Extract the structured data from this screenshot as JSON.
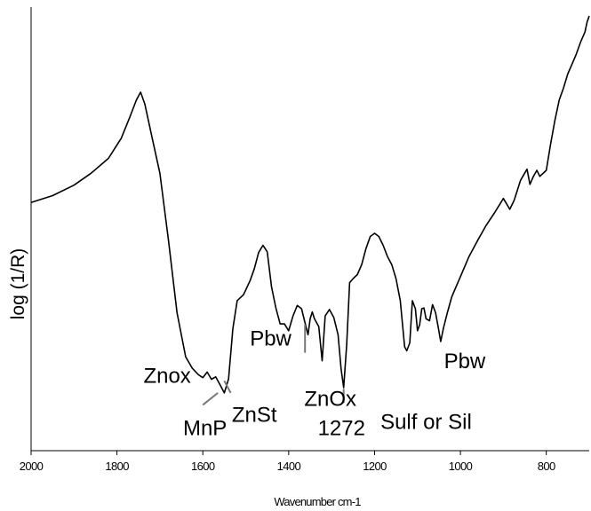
{
  "chart_data": {
    "type": "line",
    "title": "",
    "xlabel": "Wavenumber cm-1",
    "ylabel": "log (1/R)",
    "xlim": [
      2000,
      700
    ],
    "ylim": [
      0,
      1
    ],
    "x_reversed": true,
    "grid": false,
    "legend": "none",
    "xticks": [
      2000,
      1800,
      1600,
      1400,
      1200,
      1000,
      800
    ],
    "xtick_labels": [
      "2000",
      "1800",
      "1600",
      "1400",
      "1200",
      "1000",
      "800"
    ],
    "series": [
      {
        "color": "#000000",
        "x": [
          2000,
          1950,
          1900,
          1860,
          1820,
          1790,
          1770,
          1755,
          1745,
          1735,
          1720,
          1700,
          1680,
          1660,
          1640,
          1625,
          1610,
          1600,
          1590,
          1580,
          1570,
          1560,
          1550,
          1540,
          1530,
          1520,
          1505,
          1490,
          1480,
          1470,
          1460,
          1450,
          1440,
          1430,
          1420,
          1410,
          1400,
          1390,
          1380,
          1370,
          1362,
          1355,
          1350,
          1345,
          1340,
          1330,
          1322,
          1315,
          1305,
          1295,
          1285,
          1278,
          1272,
          1265,
          1258,
          1250,
          1240,
          1230,
          1220,
          1210,
          1200,
          1190,
          1180,
          1170,
          1160,
          1150,
          1140,
          1130,
          1125,
          1118,
          1112,
          1105,
          1100,
          1095,
          1090,
          1085,
          1080,
          1072,
          1065,
          1058,
          1052,
          1046,
          1040,
          1030,
          1020,
          1000,
          980,
          960,
          940,
          920,
          900,
          885,
          875,
          860,
          845,
          838,
          830,
          822,
          815,
          800,
          790,
          780,
          770,
          760,
          750,
          740,
          730,
          720,
          710,
          705,
          700
        ],
        "y": [
          0.535,
          0.552,
          0.578,
          0.608,
          0.645,
          0.695,
          0.748,
          0.79,
          0.81,
          0.78,
          0.705,
          0.608,
          0.44,
          0.26,
          0.15,
          0.122,
          0.105,
          0.098,
          0.112,
          0.094,
          0.1,
          0.08,
          0.06,
          0.095,
          0.22,
          0.29,
          0.305,
          0.34,
          0.37,
          0.41,
          0.428,
          0.412,
          0.325,
          0.272,
          0.232,
          0.232,
          0.215,
          0.252,
          0.278,
          0.27,
          0.235,
          0.205,
          0.245,
          0.262,
          0.245,
          0.225,
          0.14,
          0.252,
          0.268,
          0.248,
          0.205,
          0.12,
          0.073,
          0.18,
          0.335,
          0.345,
          0.355,
          0.38,
          0.42,
          0.45,
          0.458,
          0.45,
          0.428,
          0.4,
          0.38,
          0.345,
          0.29,
          0.175,
          0.165,
          0.185,
          0.29,
          0.27,
          0.215,
          0.23,
          0.27,
          0.272,
          0.245,
          0.24,
          0.28,
          0.26,
          0.225,
          0.188,
          0.22,
          0.262,
          0.3,
          0.35,
          0.4,
          0.44,
          0.478,
          0.51,
          0.545,
          0.518,
          0.54,
          0.59,
          0.618,
          0.58,
          0.6,
          0.615,
          0.6,
          0.615,
          0.68,
          0.74,
          0.79,
          0.82,
          0.855,
          0.88,
          0.905,
          0.935,
          0.96,
          0.985,
          1.0
        ]
      }
    ],
    "annotations": [
      {
        "text": "Znox",
        "x": 1683,
        "y": 0.085
      },
      {
        "text": "MnP",
        "x": 1595,
        "y": -0.045
      },
      {
        "text": "ZnSt",
        "x": 1480,
        "y": -0.012
      },
      {
        "text": "Pbw",
        "x": 1442,
        "y": 0.178
      },
      {
        "text": "ZnOx",
        "x": 1303,
        "y": 0.028
      },
      {
        "text": "1272",
        "x": 1277,
        "y": -0.045
      },
      {
        "text": "Sulf or Sil",
        "x": 1080,
        "y": -0.03
      },
      {
        "text": "Pbw",
        "x": 990,
        "y": 0.122
      }
    ],
    "pointer_lines": [
      {
        "from": [
          1600,
          0.03
        ],
        "to": [
          1565,
          0.06
        ]
      },
      {
        "from": [
          1535,
          0.06
        ],
        "to": [
          1550,
          0.09
        ]
      },
      {
        "from": [
          1362,
          0.16
        ],
        "to": [
          1362,
          0.23
        ]
      },
      {
        "from": [
          1272,
          0.035
        ],
        "to": [
          1272,
          0.07
        ]
      }
    ]
  }
}
